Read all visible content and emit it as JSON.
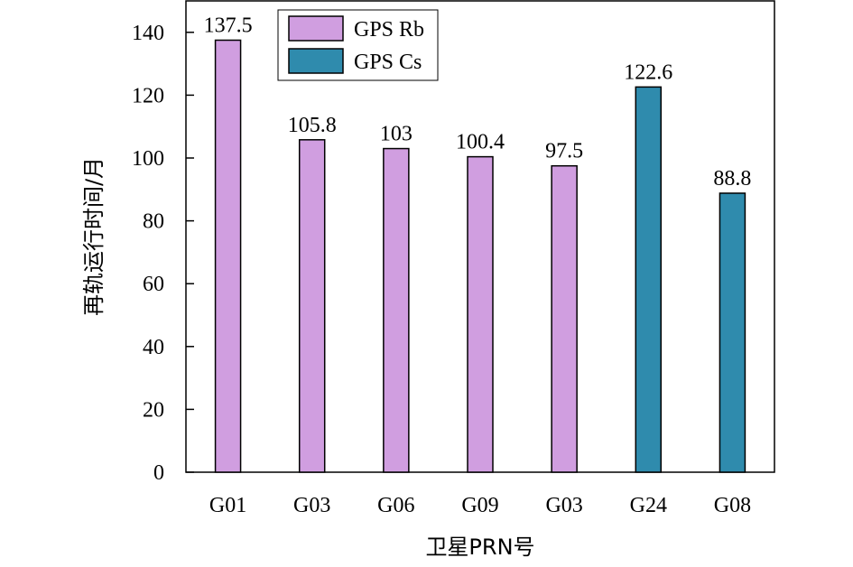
{
  "chart_data": {
    "type": "bar",
    "title": "",
    "xlabel": "卫星PRN号",
    "ylabel": "再轨运行时间/月",
    "ylim": [
      0,
      150
    ],
    "yticks": [
      0,
      20,
      40,
      60,
      80,
      100,
      120,
      140
    ],
    "grid": false,
    "legend_position": "top-left",
    "categories": [
      "G01",
      "G03",
      "G06",
      "G09",
      "G03",
      "G24",
      "G08"
    ],
    "values": [
      137.5,
      105.8,
      103,
      100.4,
      97.5,
      122.6,
      88.8
    ],
    "bar_series": [
      "GPS Rb",
      "GPS Rb",
      "GPS Rb",
      "GPS Rb",
      "GPS Rb",
      "GPS Cs",
      "GPS Cs"
    ],
    "series": [
      {
        "name": "GPS Rb",
        "color": "#d09ee0"
      },
      {
        "name": "GPS Cs",
        "color": "#2f8bad"
      }
    ]
  }
}
